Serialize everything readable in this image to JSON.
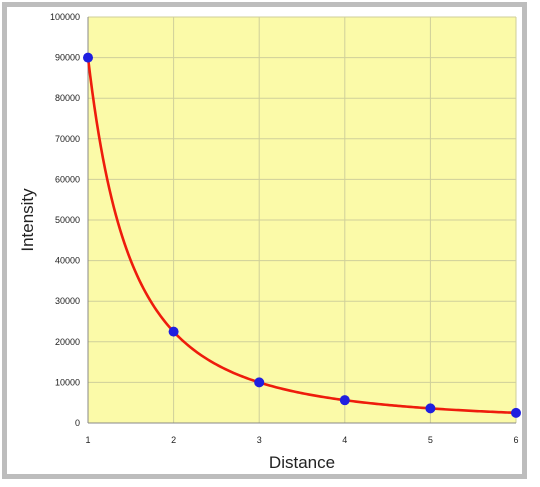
{
  "chart_data": {
    "type": "scatter",
    "title": "",
    "xlabel": "Distance",
    "ylabel": "Intensity",
    "xlim": [
      1,
      6
    ],
    "ylim": [
      0,
      100000
    ],
    "x_ticks": [
      1,
      2,
      3,
      4,
      5,
      6
    ],
    "y_ticks": [
      0,
      10000,
      20000,
      30000,
      40000,
      50000,
      60000,
      70000,
      80000,
      90000,
      100000
    ],
    "grid": true,
    "legend": "none",
    "series": [
      {
        "x": [
          1,
          2,
          3,
          4,
          5,
          6
        ],
        "y": [
          90000,
          22500,
          10000,
          5625,
          3600,
          2500
        ],
        "marker_color": "#1f1fe0"
      }
    ],
    "fit_curve": {
      "kind": "inverse-square",
      "color": "#ee1c0c"
    },
    "colors": {
      "plot_background": "#fbfaa8",
      "grid": "#cfcf9a",
      "axis": "#888888",
      "frame": "#bdbdbd"
    }
  }
}
